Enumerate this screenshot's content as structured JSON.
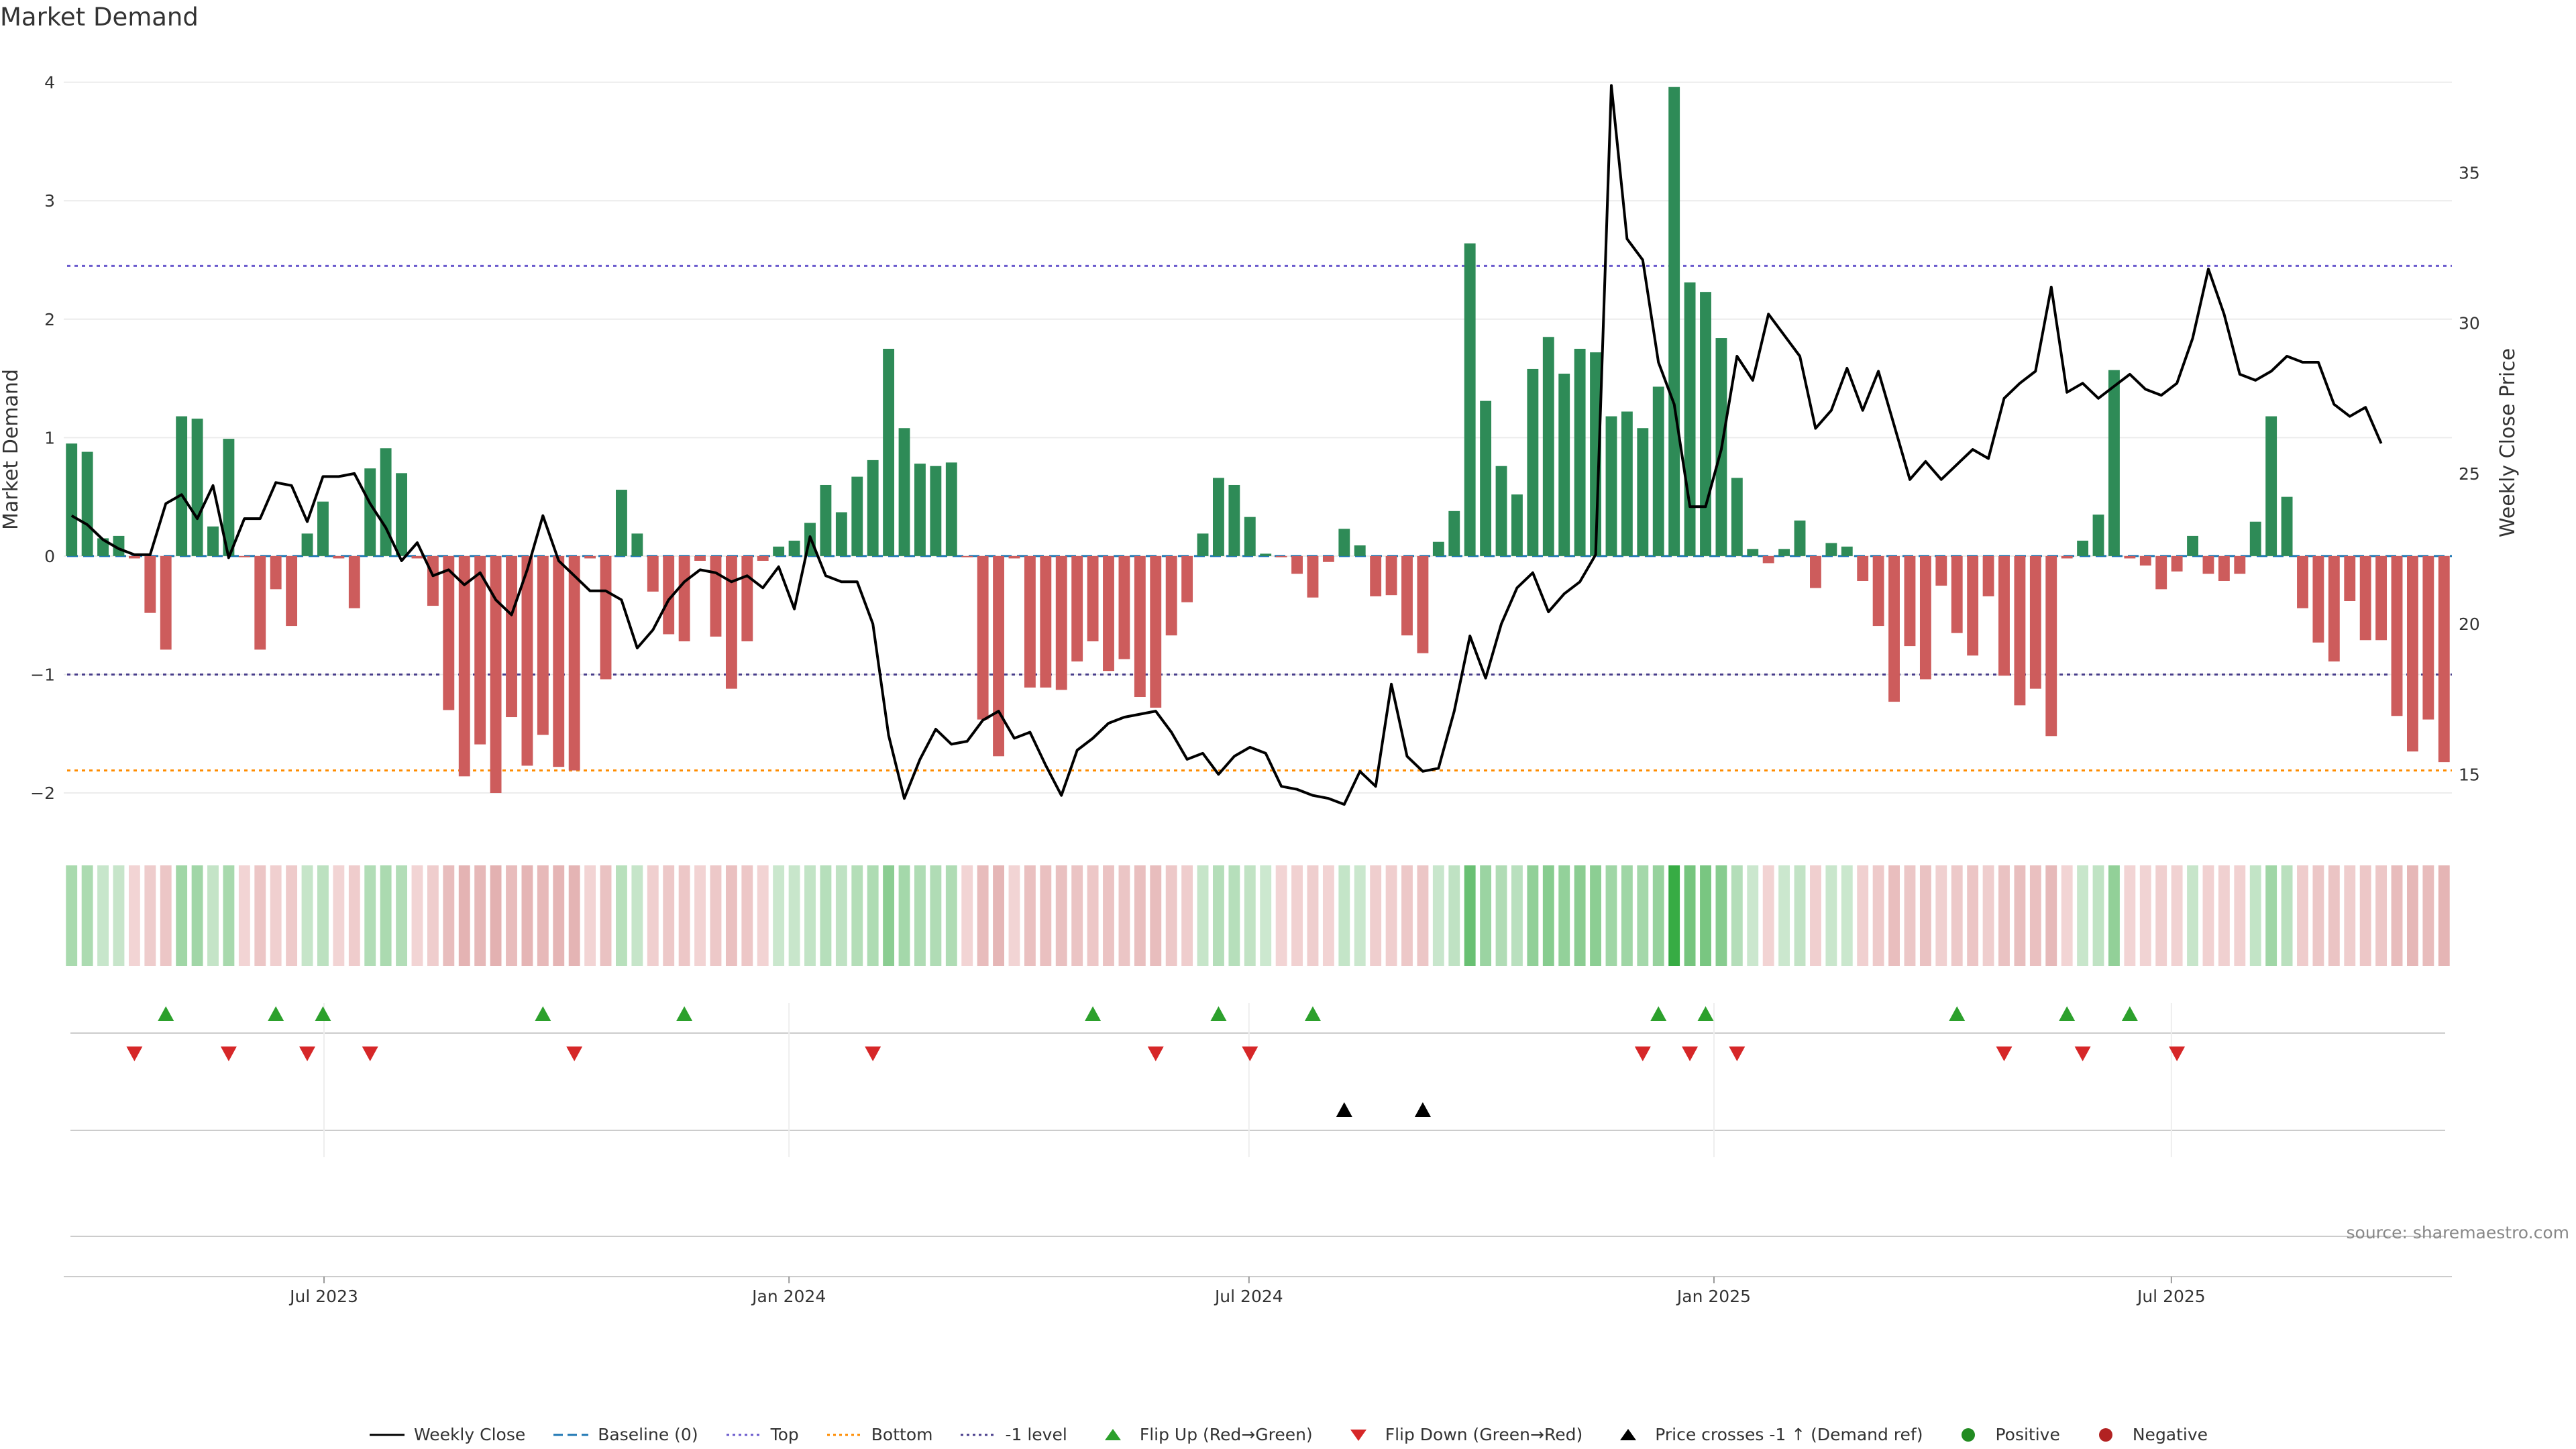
{
  "chart_data": {
    "type": "bar",
    "title": "Market Demand",
    "ylabel": "Market Demand",
    "y2label": "Weekly Close Price",
    "ylim": [
      -2.3,
      4.1
    ],
    "y2lim": [
      13.2,
      38.4
    ],
    "yticks": [
      -2,
      -1,
      0,
      1,
      2,
      3,
      4
    ],
    "y2ticks": [
      15,
      20,
      25,
      30,
      35
    ],
    "x_start": "2023-03-20",
    "x_end": "2025-10-20",
    "x_ticks": [
      {
        "label": "Jul 2023",
        "date": "2023-07-01"
      },
      {
        "label": "Jan 2024",
        "date": "2024-01-01"
      },
      {
        "label": "Jul 2024",
        "date": "2024-07-01"
      },
      {
        "label": "Jan 2025",
        "date": "2025-01-01"
      },
      {
        "label": "Jul 2025",
        "date": "2025-07-01"
      }
    ],
    "reference_lines": {
      "baseline": 0,
      "top": 2.45,
      "bottom": -1.81,
      "minus_one": -1
    },
    "demand": [
      0.95,
      0.88,
      0.15,
      0.17,
      -0.02,
      -0.48,
      -0.79,
      1.18,
      1.16,
      0.25,
      0.99,
      -0.01,
      -0.79,
      -0.28,
      -0.59,
      0.19,
      0.46,
      -0.02,
      -0.44,
      0.74,
      0.91,
      0.7,
      -0.02,
      -0.42,
      -1.3,
      -1.86,
      -1.59,
      -2.0,
      -1.36,
      -1.77,
      -1.51,
      -1.78,
      -1.81,
      -0.02,
      -1.04,
      0.56,
      0.19,
      -0.3,
      -0.66,
      -0.72,
      -0.04,
      -0.68,
      -1.12,
      -0.72,
      -0.04,
      0.08,
      0.13,
      0.28,
      0.6,
      0.37,
      0.67,
      0.81,
      1.75,
      1.08,
      0.78,
      0.76,
      0.79,
      -0.01,
      -1.38,
      -1.69,
      -0.02,
      -1.11,
      -1.11,
      -1.13,
      -0.89,
      -0.72,
      -0.97,
      -0.87,
      -1.19,
      -1.28,
      -0.67,
      -0.39,
      0.19,
      0.66,
      0.6,
      0.33,
      0.02,
      -0.01,
      -0.15,
      -0.35,
      -0.05,
      0.23,
      0.09,
      -0.34,
      -0.33,
      -0.67,
      -0.82,
      0.12,
      0.38,
      2.64,
      1.31,
      0.76,
      0.52,
      1.58,
      1.85,
      1.54,
      1.75,
      1.72,
      1.18,
      1.22,
      1.08,
      1.43,
      3.96,
      2.31,
      2.23,
      1.84,
      0.66,
      0.06,
      -0.06,
      0.06,
      0.3,
      -0.27,
      0.11,
      0.08,
      -0.21,
      -0.59,
      -1.23,
      -0.76,
      -1.04,
      -0.25,
      -0.65,
      -0.84,
      -0.34,
      -1.01,
      -1.26,
      -1.12,
      -1.52,
      -0.02,
      0.13,
      0.35,
      1.57,
      -0.02,
      -0.08,
      -0.28,
      -0.13,
      0.17,
      -0.15,
      -0.21,
      -0.15,
      0.29,
      1.18,
      0.5,
      -0.44,
      -0.73,
      -0.89,
      -0.38,
      -0.71,
      -0.71,
      -1.35,
      -1.65,
      -1.38,
      -1.74
    ],
    "weekly_close": [
      23.6,
      23.3,
      22.8,
      22.5,
      22.3,
      22.3,
      24.0,
      24.3,
      23.5,
      24.6,
      22.2,
      23.5,
      23.5,
      24.7,
      24.6,
      23.4,
      24.9,
      24.9,
      25.0,
      24.0,
      23.2,
      22.1,
      22.7,
      21.6,
      21.8,
      21.3,
      21.7,
      20.8,
      20.3,
      21.8,
      23.6,
      22.1,
      21.6,
      21.1,
      21.1,
      20.8,
      19.2,
      19.8,
      20.8,
      21.4,
      21.8,
      21.7,
      21.4,
      21.6,
      21.2,
      21.9,
      20.5,
      22.9,
      21.6,
      21.4,
      21.4,
      20.0,
      16.3,
      14.2,
      15.5,
      16.5,
      16.0,
      16.1,
      16.8,
      17.1,
      16.2,
      16.4,
      15.3,
      14.3,
      15.8,
      16.2,
      16.7,
      16.9,
      17.0,
      17.1,
      16.4,
      15.5,
      15.7,
      15.0,
      15.6,
      15.9,
      15.7,
      14.6,
      14.5,
      14.3,
      14.2,
      14.0,
      15.1,
      14.6,
      18.0,
      15.6,
      15.1,
      15.2,
      17.1,
      19.6,
      18.2,
      20.0,
      21.2,
      21.7,
      20.4,
      21.0,
      21.4,
      22.3,
      37.9,
      32.8,
      32.1,
      28.7,
      27.3,
      23.9,
      23.9,
      25.8,
      28.9,
      28.1,
      30.3,
      29.6,
      28.9,
      26.5,
      27.1,
      28.5,
      27.1,
      28.4,
      26.6,
      24.8,
      25.4,
      24.8,
      25.3,
      25.8,
      25.5,
      27.5,
      28.0,
      28.4,
      31.2,
      27.7,
      28.0,
      27.5,
      27.9,
      28.3,
      27.8,
      27.6,
      28.0,
      29.5,
      31.8,
      30.3,
      28.3,
      28.1,
      28.4,
      28.9,
      28.7,
      28.7,
      27.3,
      26.9,
      27.2,
      26.0
    ],
    "flip_up_weeks": [
      6,
      13,
      16,
      30,
      39,
      65,
      73,
      79,
      101,
      104,
      120,
      127,
      131
    ],
    "flip_down_weeks": [
      4,
      10,
      15,
      19,
      32,
      51,
      69,
      75,
      100,
      103,
      106,
      123,
      128,
      134
    ],
    "price_cross_weeks": [
      81,
      86
    ],
    "legend": [
      {
        "key": "weekly_close",
        "label": "Weekly Close"
      },
      {
        "key": "baseline",
        "label": "Baseline (0)"
      },
      {
        "key": "top",
        "label": "Top"
      },
      {
        "key": "bottom",
        "label": "Bottom"
      },
      {
        "key": "minus_one",
        "label": "-1 level"
      },
      {
        "key": "flip_up",
        "label": "Flip Up (Red→Green)"
      },
      {
        "key": "flip_down",
        "label": "Flip Down (Green→Red)"
      },
      {
        "key": "price_cross",
        "label": "Price crosses -1 ↑ (Demand ref)"
      },
      {
        "key": "positive",
        "label": "Positive"
      },
      {
        "key": "negative",
        "label": "Negative"
      }
    ],
    "colors": {
      "positive": "#2e8b57",
      "negative": "#cd5c5c",
      "line": "#000000",
      "baseline": "#1f77b4",
      "top": "#6a5acd",
      "bottom": "#ff8c00",
      "minus_one": "#483d8b",
      "flip_up": "#2ca02c",
      "flip_down": "#d62728",
      "price_cross": "#000000",
      "legend_positive": "#228b22",
      "legend_negative": "#b22222"
    }
  },
  "footer": {
    "source": "source: sharemaestro.com"
  }
}
